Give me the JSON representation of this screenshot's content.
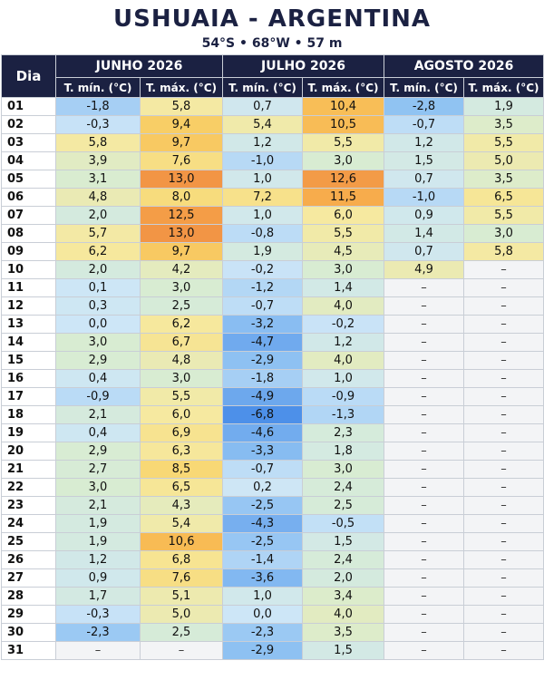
{
  "header": {
    "title": "USHUAIA - ARGENTINA",
    "subtitle": "54°S • 68°W • 57 m"
  },
  "chart_data": {
    "type": "table",
    "row_header_label": "Dia",
    "sub_headers": {
      "min": "T. mín. (°C)",
      "max": "T. máx. (°C)"
    },
    "missing_marker": "–",
    "days": [
      "01",
      "02",
      "03",
      "04",
      "05",
      "06",
      "07",
      "08",
      "09",
      "10",
      "11",
      "12",
      "13",
      "14",
      "15",
      "16",
      "17",
      "18",
      "19",
      "20",
      "21",
      "22",
      "23",
      "24",
      "25",
      "26",
      "27",
      "28",
      "29",
      "30",
      "31"
    ],
    "months": [
      {
        "name": "JUNHO 2026",
        "min": [
          "-1,8",
          "-0,3",
          "5,8",
          "3,9",
          "3,1",
          "4,8",
          "2,0",
          "5,7",
          "6,2",
          "2,0",
          "0,1",
          "0,3",
          "0,0",
          "3,0",
          "2,9",
          "0,4",
          "-0,9",
          "2,1",
          "0,4",
          "2,9",
          "2,7",
          "3,0",
          "2,1",
          "1,9",
          "1,9",
          "1,2",
          "0,9",
          "1,7",
          "-0,3",
          "-2,3",
          "–"
        ],
        "max": [
          "5,8",
          "9,4",
          "9,7",
          "7,6",
          "13,0",
          "8,0",
          "12,5",
          "13,0",
          "9,7",
          "4,2",
          "3,0",
          "2,5",
          "6,2",
          "6,7",
          "4,8",
          "3,0",
          "5,5",
          "6,0",
          "6,9",
          "6,3",
          "8,5",
          "6,5",
          "4,3",
          "5,4",
          "10,6",
          "6,8",
          "7,6",
          "5,1",
          "5,0",
          "2,5",
          "–"
        ]
      },
      {
        "name": "JULHO 2026",
        "min": [
          "0,7",
          "5,4",
          "1,2",
          "-1,0",
          "1,0",
          "7,2",
          "1,0",
          "-0,8",
          "1,9",
          "-0,2",
          "-1,2",
          "-0,7",
          "-3,2",
          "-4,7",
          "-2,9",
          "-1,8",
          "-4,9",
          "-6,8",
          "-4,6",
          "-3,3",
          "-0,7",
          "0,2",
          "-2,5",
          "-4,3",
          "-2,5",
          "-1,4",
          "-3,6",
          "1,0",
          "0,0",
          "-2,3",
          "-2,9"
        ],
        "max": [
          "10,4",
          "10,5",
          "5,5",
          "3,0",
          "12,6",
          "11,5",
          "6,0",
          "5,5",
          "4,5",
          "3,0",
          "1,4",
          "4,0",
          "-0,2",
          "1,2",
          "4,0",
          "1,0",
          "-0,9",
          "-1,3",
          "2,3",
          "1,8",
          "3,0",
          "2,4",
          "2,5",
          "-0,5",
          "1,5",
          "2,4",
          "2,0",
          "3,4",
          "4,0",
          "3,5",
          "1,5"
        ]
      },
      {
        "name": "AGOSTO 2026",
        "min": [
          "-2,8",
          "-0,7",
          "1,2",
          "1,5",
          "0,7",
          "-1,0",
          "0,9",
          "1,4",
          "0,7",
          "4,9",
          "–",
          "–",
          "–",
          "–",
          "–",
          "–",
          "–",
          "–",
          "–",
          "–",
          "–",
          "–",
          "–",
          "–",
          "–",
          "–",
          "–",
          "–",
          "–",
          "–",
          "–"
        ],
        "max": [
          "1,9",
          "3,5",
          "5,5",
          "5,0",
          "3,5",
          "6,5",
          "5,5",
          "3,0",
          "5,8",
          "–",
          "–",
          "–",
          "–",
          "–",
          "–",
          "–",
          "–",
          "–",
          "–",
          "–",
          "–",
          "–",
          "–",
          "–",
          "–",
          "–",
          "–",
          "–",
          "–",
          "–",
          "–"
        ]
      }
    ],
    "color_scale": [
      {
        "v": -7,
        "c": "#4a8de8"
      },
      {
        "v": -3,
        "c": "#8cc0f2"
      },
      {
        "v": 0,
        "c": "#cde6f7"
      },
      {
        "v": 3,
        "c": "#d8ecd2"
      },
      {
        "v": 6,
        "c": "#f6e9a0"
      },
      {
        "v": 9,
        "c": "#f8d56c"
      },
      {
        "v": 11,
        "c": "#f8b44e"
      },
      {
        "v": 13,
        "c": "#f29545"
      }
    ]
  }
}
